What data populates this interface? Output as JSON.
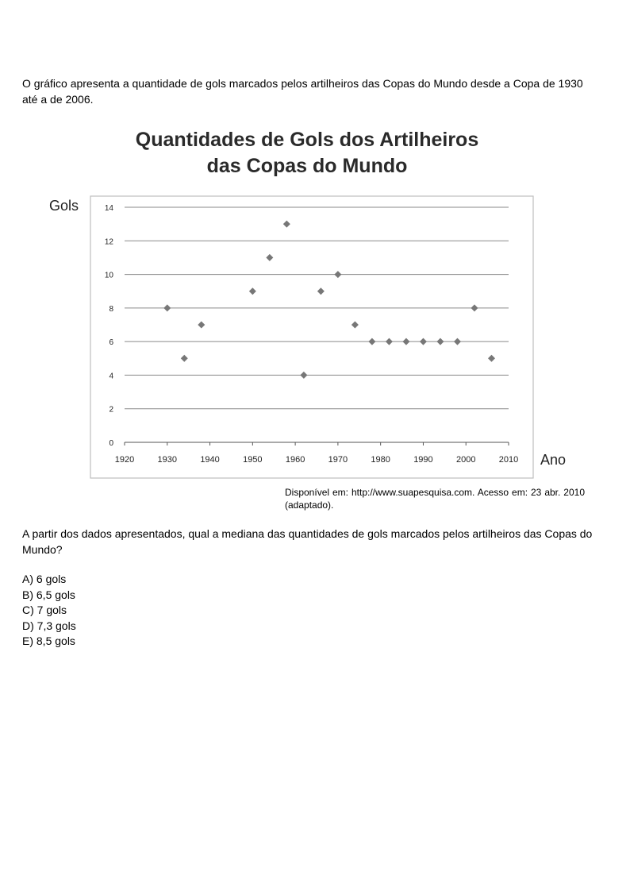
{
  "intro_text": "O gráfico apresenta a quantidade de gols marcados pelos artilheiros das Copas do Mundo desde a Copa de 1930 até a de 2006.",
  "chart_data": {
    "type": "scatter",
    "title": [
      "Quantidades de Gols dos Artilheiros",
      "das Copas do Mundo"
    ],
    "xlabel": "Ano",
    "ylabel": "Gols",
    "xlim": [
      1920,
      2010
    ],
    "ylim": [
      0,
      14
    ],
    "xticks": [
      1920,
      1930,
      1940,
      1950,
      1960,
      1970,
      1980,
      1990,
      2000,
      2010
    ],
    "yticks": [
      0,
      2,
      4,
      6,
      8,
      10,
      12,
      14
    ],
    "grid": "horizontal",
    "marker": "diamond",
    "marker_color": "#777777",
    "points": [
      {
        "x": 1930,
        "y": 8
      },
      {
        "x": 1934,
        "y": 5
      },
      {
        "x": 1938,
        "y": 7
      },
      {
        "x": 1950,
        "y": 9
      },
      {
        "x": 1954,
        "y": 11
      },
      {
        "x": 1958,
        "y": 13
      },
      {
        "x": 1962,
        "y": 4
      },
      {
        "x": 1966,
        "y": 9
      },
      {
        "x": 1970,
        "y": 10
      },
      {
        "x": 1974,
        "y": 7
      },
      {
        "x": 1978,
        "y": 6
      },
      {
        "x": 1982,
        "y": 6
      },
      {
        "x": 1986,
        "y": 6
      },
      {
        "x": 1990,
        "y": 6
      },
      {
        "x": 1994,
        "y": 6
      },
      {
        "x": 1998,
        "y": 6
      },
      {
        "x": 2002,
        "y": 8
      },
      {
        "x": 2006,
        "y": 5
      }
    ]
  },
  "source_text": "Disponível em: http://www.suapesquisa.com. Acesso em: 23 abr. 2010 (adaptado).",
  "question_text": "A partir dos dados apresentados, qual a mediana das quantidades de gols marcados pelos artilheiros das Copas do Mundo?",
  "options": [
    "A) 6 gols",
    "B) 6,5 gols",
    "C) 7 gols",
    "D) 7,3 gols",
    "E) 8,5 gols"
  ]
}
